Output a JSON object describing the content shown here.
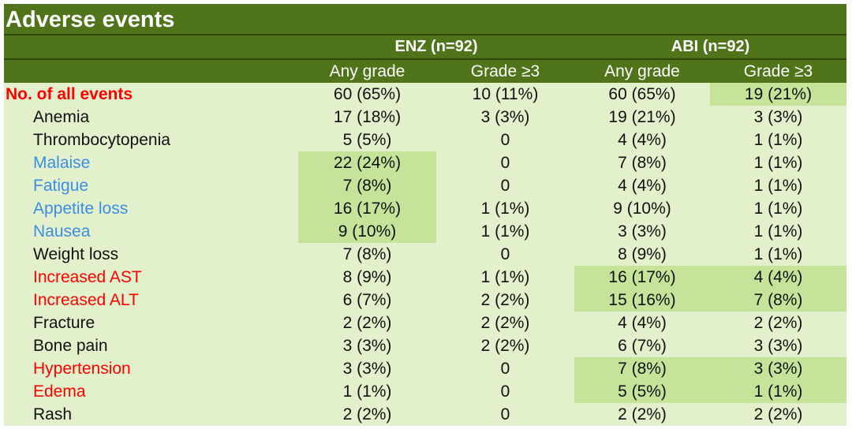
{
  "title": "Adverse events",
  "groups": [
    "ENZ (n=92)",
    "ABI (n=92)"
  ],
  "subheaders": [
    "Any grade",
    "Grade ≥3",
    "Any grade",
    "Grade ≥3"
  ],
  "colors": {
    "header_bg": "#4f7419",
    "row_bg": "#e2f1cb",
    "highlight_bg": "#c5e49a",
    "red": "#ff0000",
    "blue": "#3a8ee6",
    "black": "#111111"
  },
  "rows": [
    {
      "label": "No. of all events",
      "color": "red",
      "total": true,
      "values": [
        "60 (65%)",
        "10 (11%)",
        "60 (65%)",
        "19 (21%)"
      ],
      "highlight": [
        false,
        false,
        false,
        true
      ]
    },
    {
      "label": "Anemia",
      "color": "black",
      "values": [
        "17 (18%)",
        "3 (3%)",
        "19 (21%)",
        "3 (3%)"
      ],
      "highlight": [
        false,
        false,
        false,
        false
      ]
    },
    {
      "label": "Thrombocytopenia",
      "color": "black",
      "values": [
        "5 (5%)",
        "0",
        "4 (4%)",
        "1 (1%)"
      ],
      "highlight": [
        false,
        false,
        false,
        false
      ]
    },
    {
      "label": "Malaise",
      "color": "blue",
      "values": [
        "22 (24%)",
        "0",
        "7 (8%)",
        "1 (1%)"
      ],
      "highlight": [
        true,
        false,
        false,
        false
      ]
    },
    {
      "label": "Fatigue",
      "color": "blue",
      "values": [
        "7 (8%)",
        "0",
        "4 (4%)",
        "1 (1%)"
      ],
      "highlight": [
        true,
        false,
        false,
        false
      ]
    },
    {
      "label": "Appetite loss",
      "color": "blue",
      "values": [
        "16 (17%)",
        "1 (1%)",
        "9 (10%)",
        "1 (1%)"
      ],
      "highlight": [
        true,
        false,
        false,
        false
      ]
    },
    {
      "label": "Nausea",
      "color": "blue",
      "values": [
        "9 (10%)",
        "1 (1%)",
        "3 (3%)",
        "1 (1%)"
      ],
      "highlight": [
        true,
        false,
        false,
        false
      ]
    },
    {
      "label": "Weight loss",
      "color": "black",
      "values": [
        "7 (8%)",
        "0",
        "8 (9%)",
        "1 (1%)"
      ],
      "highlight": [
        false,
        false,
        false,
        false
      ]
    },
    {
      "label": "Increased AST",
      "color": "red",
      "values": [
        "8 (9%)",
        "1 (1%)",
        "16 (17%)",
        "4 (4%)"
      ],
      "highlight": [
        false,
        false,
        true,
        true
      ]
    },
    {
      "label": "Increased ALT",
      "color": "red",
      "values": [
        "6 (7%)",
        "2 (2%)",
        "15 (16%)",
        "7 (8%)"
      ],
      "highlight": [
        false,
        false,
        true,
        true
      ]
    },
    {
      "label": "Fracture",
      "color": "black",
      "values": [
        "2 (2%)",
        "2 (2%)",
        "4 (4%)",
        "2 (2%)"
      ],
      "highlight": [
        false,
        false,
        false,
        false
      ]
    },
    {
      "label": "Bone pain",
      "color": "black",
      "values": [
        "3 (3%)",
        "2 (2%)",
        "6 (7%)",
        "3 (3%)"
      ],
      "highlight": [
        false,
        false,
        false,
        false
      ]
    },
    {
      "label": "Hypertension",
      "color": "red",
      "values": [
        "3 (3%)",
        "0",
        "7 (8%)",
        "3 (3%)"
      ],
      "highlight": [
        false,
        false,
        true,
        true
      ]
    },
    {
      "label": "Edema",
      "color": "red",
      "values": [
        "1 (1%)",
        "0",
        "5 (5%)",
        "1 (1%)"
      ],
      "highlight": [
        false,
        false,
        true,
        true
      ]
    },
    {
      "label": "Rash",
      "color": "black",
      "values": [
        "2 (2%)",
        "0",
        "2 (2%)",
        "2 (2%)"
      ],
      "highlight": [
        false,
        false,
        false,
        false
      ]
    }
  ]
}
